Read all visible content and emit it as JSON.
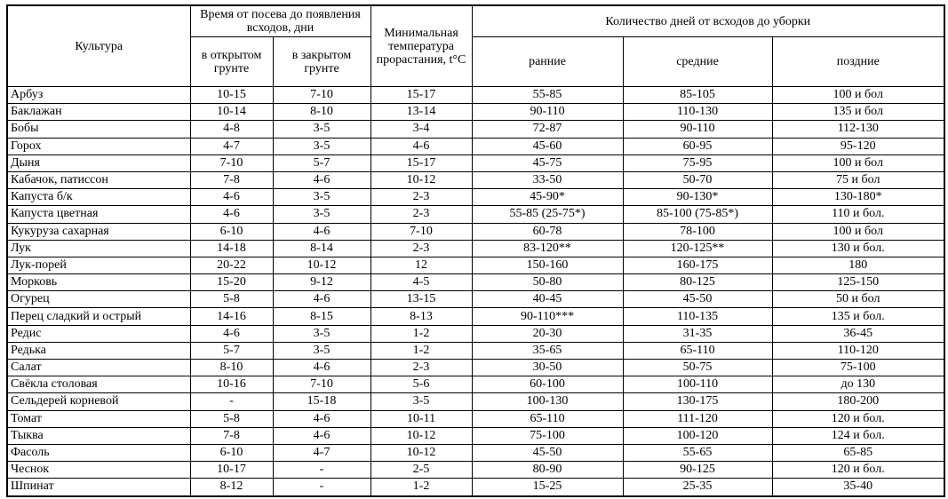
{
  "table": {
    "header": {
      "crop": "Культура",
      "sowing_group": "Время от посева до появления всходов, дни",
      "open_ground": "в открытом грунте",
      "closed_ground": "в закрытом грунте",
      "min_temp": "Минимальная температура прорастания, t°C",
      "harvest_group": "Количество дней от всходов до уборки",
      "early": "ранние",
      "middle": "средние",
      "late": "поздние"
    },
    "rows": [
      [
        "Арбуз",
        "10-15",
        "7-10",
        "15-17",
        "55-85",
        "85-105",
        "100 и бол"
      ],
      [
        "Баклажан",
        "10-14",
        "8-10",
        "13-14",
        "90-110",
        "110-130",
        "135 и бол"
      ],
      [
        "Бобы",
        "4-8",
        "3-5",
        "3-4",
        "72-87",
        "90-110",
        "112-130"
      ],
      [
        "Горох",
        "4-7",
        "3-5",
        "4-6",
        "45-60",
        "60-95",
        "95-120"
      ],
      [
        "Дыня",
        "7-10",
        "5-7",
        "15-17",
        "45-75",
        "75-95",
        "100 и бол"
      ],
      [
        "Кабачок, патиссон",
        "7-8",
        "4-6",
        "10-12",
        "33-50",
        "50-70",
        "75 и бол"
      ],
      [
        "Капуста б/к",
        "4-6",
        "3-5",
        "2-3",
        "45-90*",
        "90-130*",
        "130-180*"
      ],
      [
        "Капуста цветная",
        "4-6",
        "3-5",
        "2-3",
        "55-85 (25-75*)",
        "85-100 (75-85*)",
        "110 и бол."
      ],
      [
        "Кукуруза  сахарная",
        "6-10",
        "4-6",
        "7-10",
        "60-78",
        "78-100",
        "100 и бол"
      ],
      [
        "Лук",
        "14-18",
        "8-14",
        "2-3",
        "83-120**",
        "120-125**",
        "130 и бол."
      ],
      [
        "Лук-порей",
        "20-22",
        "10-12",
        "12",
        "150-160",
        "160-175",
        "180"
      ],
      [
        "Морковь",
        "15-20",
        "9-12",
        "4-5",
        "50-80",
        "80-125",
        "125-150"
      ],
      [
        "Огурец",
        "5-8",
        "4-6",
        "13-15",
        "40-45",
        "45-50",
        "50 и бол"
      ],
      [
        "Перец сладкий и острый",
        "14-16",
        "8-15",
        "8-13",
        "90-110***",
        "110-135",
        "135 и бол."
      ],
      [
        "Редис",
        "4-6",
        "3-5",
        "1-2",
        "20-30",
        "31-35",
        "36-45"
      ],
      [
        "Редька",
        "5-7",
        "3-5",
        "1-2",
        "35-65",
        "65-110",
        "110-120"
      ],
      [
        "Салат",
        "8-10",
        "4-6",
        "2-3",
        "30-50",
        "50-75",
        "75-100"
      ],
      [
        "Свёкла столовая",
        "10-16",
        "7-10",
        "5-6",
        "60-100",
        "100-110",
        "до 130"
      ],
      [
        "Сельдерей корневой",
        "-",
        "15-18",
        "3-5",
        "100-130",
        "130-175",
        "180-200"
      ],
      [
        "Томат",
        "5-8",
        "4-6",
        "10-11",
        "65-110",
        "111-120",
        "120 и бол."
      ],
      [
        "Тыква",
        "7-8",
        "4-6",
        "10-12",
        "75-100",
        "100-120",
        "124 и бол."
      ],
      [
        "Фасоль",
        "6-10",
        "4-7",
        "10-12",
        "45-50",
        "55-65",
        "65-85"
      ],
      [
        "Чеснок",
        "10-17",
        "-",
        "2-5",
        "80-90",
        "90-125",
        "120 и бол."
      ],
      [
        "Шпинат",
        "8-12",
        "-",
        "1-2",
        "15-25",
        "25-35",
        "35-40"
      ]
    ]
  }
}
